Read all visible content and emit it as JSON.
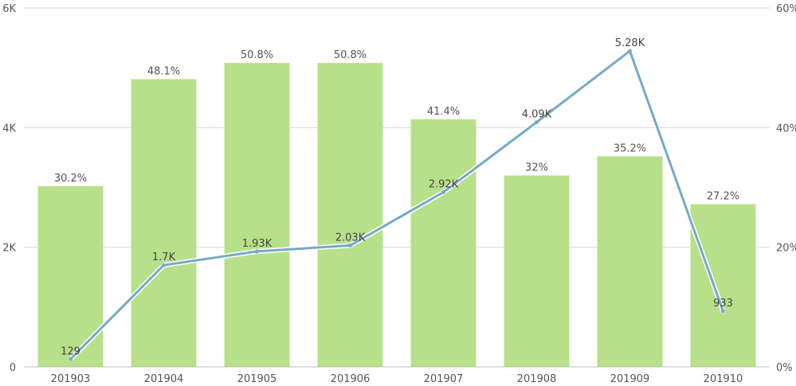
{
  "chart_data": {
    "type": "bar+line",
    "categories": [
      "201903",
      "201904",
      "201905",
      "201906",
      "201907",
      "201908",
      "201909",
      "201910"
    ],
    "series": [
      {
        "type": "bar",
        "axis": "right",
        "values": [
          30.2,
          48.1,
          50.8,
          50.8,
          41.4,
          32,
          35.2,
          27.2
        ],
        "labels": [
          "30.2%",
          "48.1%",
          "50.8%",
          "50.8%",
          "41.4%",
          "32%",
          "35.2%",
          "27.2%"
        ],
        "color": "#b8e08a"
      },
      {
        "type": "line",
        "axis": "left",
        "values": [
          129,
          1700,
          1930,
          2030,
          2920,
          4090,
          5280,
          933
        ],
        "labels": [
          "129",
          "1.7K",
          "1.93K",
          "2.03K",
          "2.92K",
          "4.09K",
          "5.28K",
          "933"
        ],
        "color": "#76a9c8"
      }
    ],
    "y_left": {
      "range": [
        0,
        6000
      ],
      "ticks": [
        0,
        2000,
        4000,
        6000
      ],
      "tick_labels": [
        "0",
        "2K",
        "4K",
        "6K"
      ]
    },
    "y_right": {
      "range": [
        0,
        60
      ],
      "ticks": [
        0,
        20,
        40,
        60
      ],
      "tick_labels": [
        "0%",
        "20%",
        "40%",
        "60%"
      ]
    },
    "grid": true,
    "legend": "none",
    "colors": {
      "grid": "#d9d9d9",
      "axis": "#bfbfbf",
      "text": "#555555"
    }
  }
}
